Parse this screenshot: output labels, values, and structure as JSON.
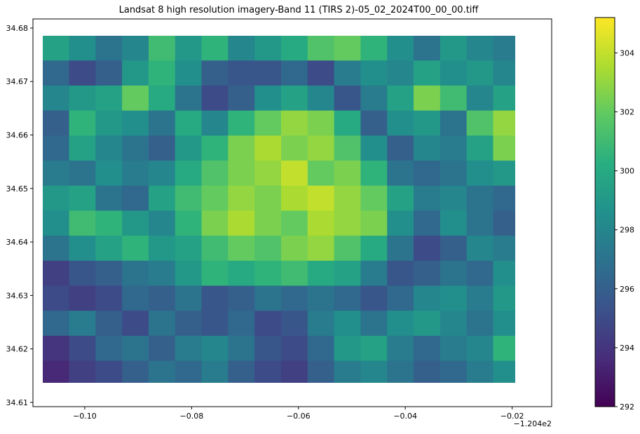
{
  "chart_data": {
    "type": "heatmap",
    "title": "Landsat 8 high resolution imagery-Band 11 (TIRS 2)-05_02_2024T00_00_00.tiff",
    "xlabel": "",
    "ylabel": "",
    "x_offset_label": "−1.204e2",
    "xlim": [
      -0.1097,
      -0.0126
    ],
    "ylim": [
      34.6092,
      34.6817
    ],
    "x_ticks": [
      -0.1,
      -0.08,
      -0.06,
      -0.04,
      -0.02
    ],
    "x_tick_labels": [
      "−0.10",
      "−0.08",
      "−0.06",
      "−0.04",
      "−0.02"
    ],
    "y_ticks": [
      34.61,
      34.62,
      34.63,
      34.64,
      34.65,
      34.66,
      34.67,
      34.68
    ],
    "y_tick_labels": [
      "34.61",
      "34.62",
      "34.63",
      "34.64",
      "34.65",
      "34.66",
      "34.67",
      "34.68"
    ],
    "image_extent": {
      "x": [
        -0.1079,
        -0.0186
      ],
      "y": [
        34.6131,
        34.6786
      ]
    },
    "colormap": "viridis",
    "colorbar": {
      "range": [
        292.0,
        305.2
      ],
      "ticks": [
        292,
        294,
        296,
        298,
        300,
        302,
        304
      ],
      "tick_labels": [
        "292",
        "294",
        "296",
        "298",
        "300",
        "302",
        "304"
      ]
    },
    "grid": false,
    "grid_rows": 14,
    "grid_cols": 18,
    "values": [
      [
        299.5,
        298.5,
        297.0,
        298.0,
        301.0,
        299.0,
        300.5,
        298.0,
        299.0,
        300.0,
        301.5,
        302.0,
        300.5,
        298.5,
        297.0,
        299.0,
        298.0,
        297.5
      ],
      [
        296.5,
        295.0,
        296.0,
        299.0,
        300.5,
        298.5,
        296.0,
        295.5,
        295.5,
        296.5,
        295.0,
        297.5,
        298.5,
        298.0,
        299.5,
        298.5,
        299.0,
        298.0
      ],
      [
        298.0,
        299.0,
        299.5,
        302.0,
        300.0,
        297.0,
        295.0,
        296.0,
        298.5,
        299.5,
        298.0,
        295.5,
        297.5,
        299.5,
        302.5,
        301.0,
        298.0,
        299.5
      ],
      [
        296.0,
        300.5,
        299.0,
        298.5,
        297.0,
        300.0,
        298.0,
        300.5,
        302.0,
        303.0,
        302.5,
        300.0,
        296.0,
        298.5,
        299.0,
        297.0,
        301.5,
        303.0
      ],
      [
        296.5,
        299.5,
        298.0,
        297.0,
        296.0,
        299.0,
        300.5,
        302.5,
        303.5,
        302.5,
        303.0,
        301.5,
        298.5,
        296.0,
        298.0,
        297.5,
        299.5,
        302.5
      ],
      [
        297.5,
        297.0,
        298.5,
        297.5,
        298.0,
        300.0,
        301.5,
        302.5,
        303.0,
        304.0,
        302.0,
        302.5,
        300.5,
        297.0,
        296.5,
        297.0,
        298.5,
        299.0
      ],
      [
        299.0,
        299.5,
        297.0,
        296.5,
        299.5,
        301.0,
        302.0,
        303.0,
        302.5,
        303.5,
        304.0,
        303.0,
        302.0,
        299.5,
        297.5,
        298.0,
        297.0,
        296.5
      ],
      [
        298.5,
        301.0,
        300.5,
        299.0,
        298.0,
        300.5,
        302.5,
        303.5,
        302.5,
        302.0,
        303.5,
        303.0,
        302.5,
        298.5,
        296.5,
        298.5,
        297.0,
        296.0
      ],
      [
        297.0,
        298.5,
        299.5,
        300.5,
        299.0,
        299.5,
        301.0,
        302.0,
        301.5,
        302.5,
        303.0,
        301.5,
        300.0,
        297.0,
        295.0,
        296.0,
        298.0,
        297.5
      ],
      [
        294.5,
        295.5,
        296.0,
        297.0,
        297.5,
        299.0,
        300.5,
        300.0,
        300.5,
        301.0,
        300.0,
        299.5,
        297.5,
        295.5,
        296.0,
        297.0,
        296.5,
        298.5
      ],
      [
        295.0,
        294.5,
        295.0,
        296.5,
        296.0,
        297.0,
        295.5,
        296.0,
        297.0,
        296.5,
        297.0,
        296.5,
        295.5,
        296.5,
        298.0,
        298.5,
        297.5,
        299.0
      ],
      [
        296.5,
        297.5,
        296.0,
        295.0,
        297.0,
        296.0,
        295.5,
        296.5,
        295.0,
        295.5,
        297.5,
        298.5,
        297.0,
        298.5,
        299.0,
        298.0,
        297.0,
        298.5
      ],
      [
        294.0,
        295.0,
        296.5,
        297.0,
        296.0,
        297.5,
        298.0,
        297.0,
        295.5,
        295.0,
        296.5,
        299.0,
        299.5,
        297.5,
        296.5,
        297.5,
        298.0,
        300.5
      ],
      [
        293.5,
        294.5,
        295.0,
        296.0,
        297.0,
        296.5,
        297.5,
        296.0,
        295.0,
        294.5,
        296.0,
        297.5,
        298.0,
        297.0,
        296.0,
        296.5,
        297.5,
        298.5
      ]
    ]
  }
}
